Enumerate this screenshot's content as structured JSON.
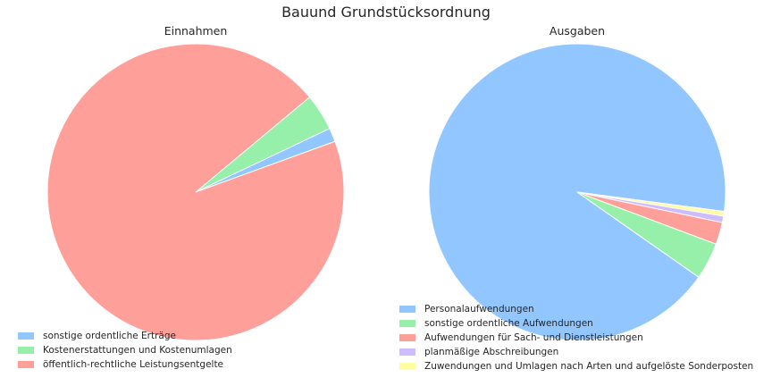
{
  "title": "Bauund Grundstücksordnung",
  "chart_data": [
    {
      "type": "pie",
      "title": "Einnahmen",
      "slices": [
        {
          "label": "sonstige ordentliche Erträge",
          "value": 1.5,
          "color": "#92c6ff"
        },
        {
          "label": "Kostenerstattungen und Kostenumlagen",
          "value": 4.0,
          "color": "#97f0aa"
        },
        {
          "label": "öffentlich-rechtliche Leistungsentgelte",
          "value": 94.5,
          "color": "#ff9f9a"
        }
      ],
      "legend_position": "lower-left"
    },
    {
      "type": "pie",
      "title": "Ausgaben",
      "slices": [
        {
          "label": "Personalaufwendungen",
          "value": 91.9,
          "color": "#92c6ff"
        },
        {
          "label": "sonstige ordentliche Aufwendungen",
          "value": 4.0,
          "color": "#97f0aa"
        },
        {
          "label": "Aufwendungen für Sach- und Dienstleistungen",
          "value": 2.4,
          "color": "#ff9f9a"
        },
        {
          "label": "planmäßige Abschreibungen",
          "value": 0.7,
          "color": "#d0bbff"
        },
        {
          "label": "Zuwendungen und Umlagen nach Arten und aufgelöste Sonderposten",
          "value": 0.5,
          "color": "#fffea3"
        }
      ],
      "legend_position": "lower-left"
    }
  ]
}
